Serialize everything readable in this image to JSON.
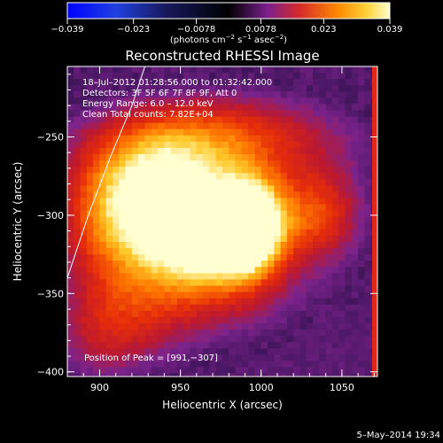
{
  "chart_data": {
    "type": "heatmap",
    "title": "Reconstructed RHESSI Image",
    "xlabel": "Heliocentric X (arcsec)",
    "ylabel": "Heliocentric Y (arcsec)",
    "xlim": [
      880,
      1072
    ],
    "ylim": [
      -403,
      -205
    ],
    "x_ticks": [
      900,
      950,
      1000,
      1050
    ],
    "y_ticks": [
      -250,
      -300,
      -350,
      -400
    ],
    "x_tick_labels": [
      "900",
      "950",
      "1000",
      "1050"
    ],
    "y_tick_labels": [
      "−250",
      "−300",
      "−350",
      "−400"
    ],
    "colorbar": {
      "min": -0.039,
      "max": 0.039,
      "ticks": [
        -0.039,
        -0.023,
        -0.0078,
        0.0078,
        0.023,
        0.039
      ],
      "tick_labels": [
        "−0.039",
        "−0.023",
        "−0.0078",
        "0.0078",
        "0.023",
        "0.039"
      ],
      "unit_prefix": "(photons cm",
      "unit_exp1": "−2",
      "unit_mid": " s",
      "unit_exp2": "−1",
      "unit_mid2": " asec",
      "unit_exp3": "−2",
      "unit_suffix": ")"
    },
    "annotations": [
      "18–Jul–2012 01:28:56.000 to 01:32:42.000",
      "Detectors: 3F 5F 6F 7F 8F 9F, Att 0",
      "Energy Range: 6.0 – 12.0 keV",
      "Clean    Total counts: 7.82E+04"
    ],
    "peak_label": "Position of Peak = [991,−307]",
    "peak": [
      991,
      -307
    ],
    "emission_sources": [
      {
        "x": 910,
        "y": -300,
        "amp": 0.65,
        "sx": 28,
        "sy": 30
      },
      {
        "x": 992,
        "y": -307,
        "amp": 1.0,
        "sx": 16,
        "sy": 22
      },
      {
        "x": 962,
        "y": -315,
        "amp": 0.72,
        "sx": 24,
        "sy": 22
      },
      {
        "x": 1035,
        "y": -300,
        "amp": 0.55,
        "sx": 22,
        "sy": 22
      },
      {
        "x": 975,
        "y": -250,
        "amp": 0.55,
        "sx": 60,
        "sy": 22
      },
      {
        "x": 945,
        "y": -280,
        "amp": 0.5,
        "sx": 30,
        "sy": 25
      },
      {
        "x": 990,
        "y": -350,
        "amp": 0.25,
        "sx": 45,
        "sy": 25
      },
      {
        "x": 930,
        "y": -355,
        "amp": 0.3,
        "sx": 35,
        "sy": 28
      },
      {
        "x": 900,
        "y": -380,
        "amp": 0.28,
        "sx": 25,
        "sy": 25
      }
    ],
    "limb_curve": [
      [
        880,
        -340
      ],
      [
        893,
        -300
      ],
      [
        907,
        -262
      ],
      [
        920,
        -230
      ],
      [
        928,
        -205
      ]
    ]
  },
  "footer": {
    "date": "5–May–2014 19:34"
  }
}
